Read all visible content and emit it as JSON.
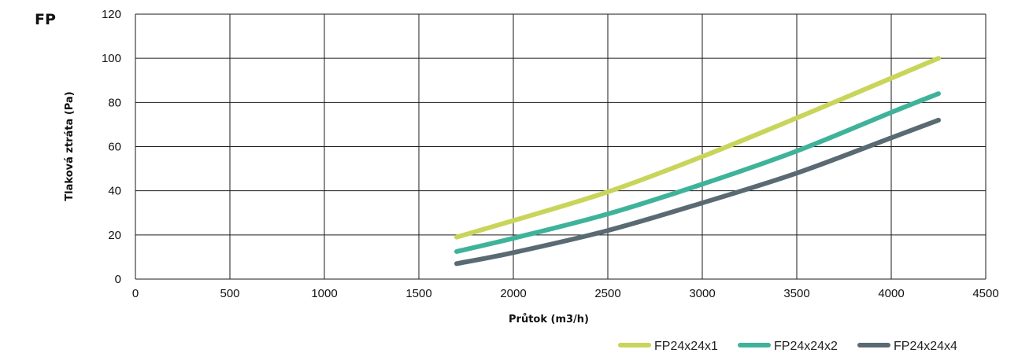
{
  "chart_data": {
    "type": "line",
    "title": "FP",
    "xlabel": "Průtok (m3/h)",
    "ylabel": "Tlaková ztráta (Pa)",
    "xlim": [
      0,
      4500
    ],
    "ylim": [
      0,
      120
    ],
    "x_ticks": [
      0,
      500,
      1000,
      1500,
      2000,
      2500,
      3000,
      3500,
      4000,
      4500
    ],
    "y_ticks": [
      0,
      20,
      40,
      60,
      80,
      100,
      120
    ],
    "grid": true,
    "legend_position": "bottom-right",
    "series": [
      {
        "name": "FP24x24x1",
        "color": "#c9d55a",
        "x": [
          1700,
          2000,
          2500,
          3000,
          3500,
          4000,
          4250
        ],
        "y": [
          19,
          26.5,
          39.5,
          55.5,
          73,
          91,
          100
        ]
      },
      {
        "name": "FP24x24x2",
        "color": "#3fb39a",
        "x": [
          1700,
          2000,
          2500,
          3000,
          3500,
          4000,
          4250
        ],
        "y": [
          12.5,
          18.5,
          29.5,
          43,
          58,
          75.5,
          84
        ]
      },
      {
        "name": "FP24x24x4",
        "color": "#5a6a73",
        "x": [
          1700,
          2000,
          2500,
          3000,
          3500,
          4000,
          4250
        ],
        "y": [
          7,
          12,
          22,
          34.5,
          48,
          64,
          72
        ]
      }
    ]
  }
}
